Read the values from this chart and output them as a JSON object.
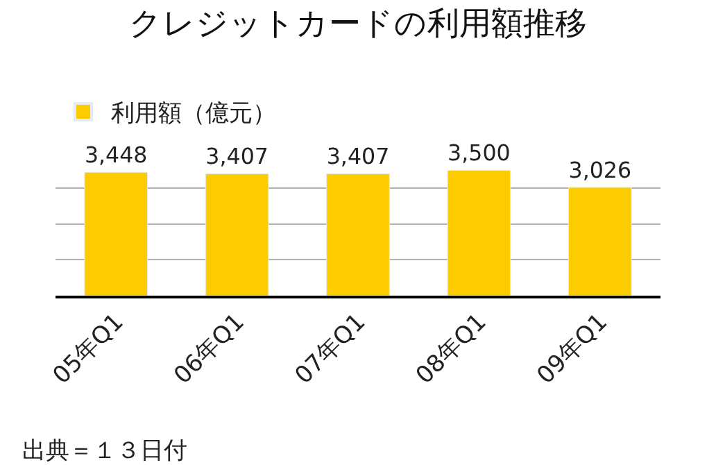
{
  "chart_data": {
    "type": "bar",
    "title": "クレジットカードの利用額推移",
    "categories": [
      "05年Q1",
      "06年Q1",
      "07年Q1",
      "08年Q1",
      "09年Q1"
    ],
    "series": [
      {
        "name": "利用額（億元）",
        "color": "#fccc00",
        "values": [
          3448,
          3407,
          3407,
          3500,
          3026
        ],
        "value_labels": [
          "3,448",
          "3,407",
          "3,407",
          "3,500",
          "3,026"
        ]
      }
    ],
    "tick_labels": "x",
    "grid": "y",
    "legend": "top left",
    "annotations": [
      "出典＝１３日付"
    ]
  }
}
